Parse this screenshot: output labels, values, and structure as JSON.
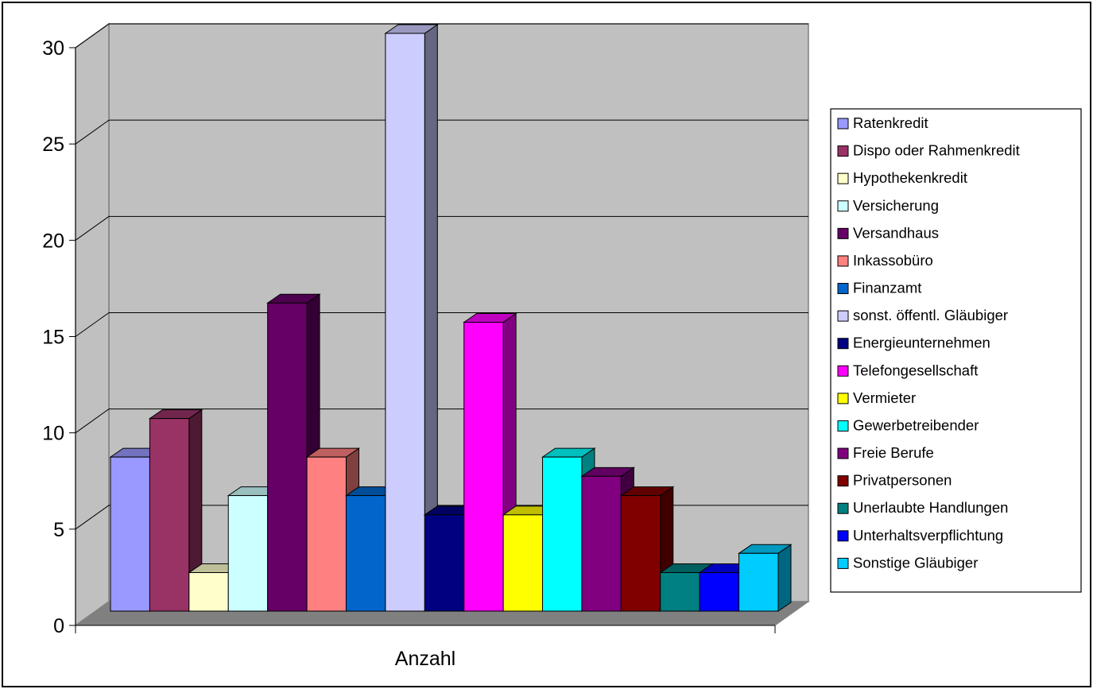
{
  "chart_data": {
    "type": "bar",
    "style": "3d-clustered-column",
    "categories": [
      "Anzahl"
    ],
    "ylim": [
      0,
      30
    ],
    "yticks": [
      0,
      5,
      10,
      15,
      20,
      25,
      30
    ],
    "grid": true,
    "legend_position": "right",
    "series": [
      {
        "name": "Ratenkredit",
        "values": [
          8
        ],
        "color": "#9999ff"
      },
      {
        "name": "Dispo oder Rahmenkredit",
        "values": [
          10
        ],
        "color": "#993366"
      },
      {
        "name": "Hypothekenkredit",
        "values": [
          2
        ],
        "color": "#ffffcc"
      },
      {
        "name": "Versicherung",
        "values": [
          6
        ],
        "color": "#ccffff"
      },
      {
        "name": "Versandhaus",
        "values": [
          16
        ],
        "color": "#660066"
      },
      {
        "name": "Inkassobüro",
        "values": [
          8
        ],
        "color": "#ff8080"
      },
      {
        "name": "Finanzamt",
        "values": [
          6
        ],
        "color": "#0066cc"
      },
      {
        "name": "sonst. öffentl. Gläubiger",
        "values": [
          30
        ],
        "color": "#ccccff"
      },
      {
        "name": "Energieunternehmen",
        "values": [
          5
        ],
        "color": "#000080"
      },
      {
        "name": "Telefongesellschaft",
        "values": [
          15
        ],
        "color": "#ff00ff"
      },
      {
        "name": "Vermieter",
        "values": [
          5
        ],
        "color": "#ffff00"
      },
      {
        "name": "Gewerbetreibender",
        "values": [
          8
        ],
        "color": "#00ffff"
      },
      {
        "name": "Freie Berufe",
        "values": [
          7
        ],
        "color": "#800080"
      },
      {
        "name": "Privatpersonen",
        "values": [
          6
        ],
        "color": "#800000"
      },
      {
        "name": "Unerlaubte Handlungen",
        "values": [
          2
        ],
        "color": "#008080"
      },
      {
        "name": "Unterhaltsverpflichtung",
        "values": [
          2
        ],
        "color": "#0000ff"
      },
      {
        "name": "Sonstige Gläubiger",
        "values": [
          3
        ],
        "color": "#00ccff"
      }
    ],
    "colors": {
      "wall": "#c0c0c0",
      "floor": "#808080",
      "side_wall": "#c0c0c0",
      "grid": "#000000"
    }
  }
}
